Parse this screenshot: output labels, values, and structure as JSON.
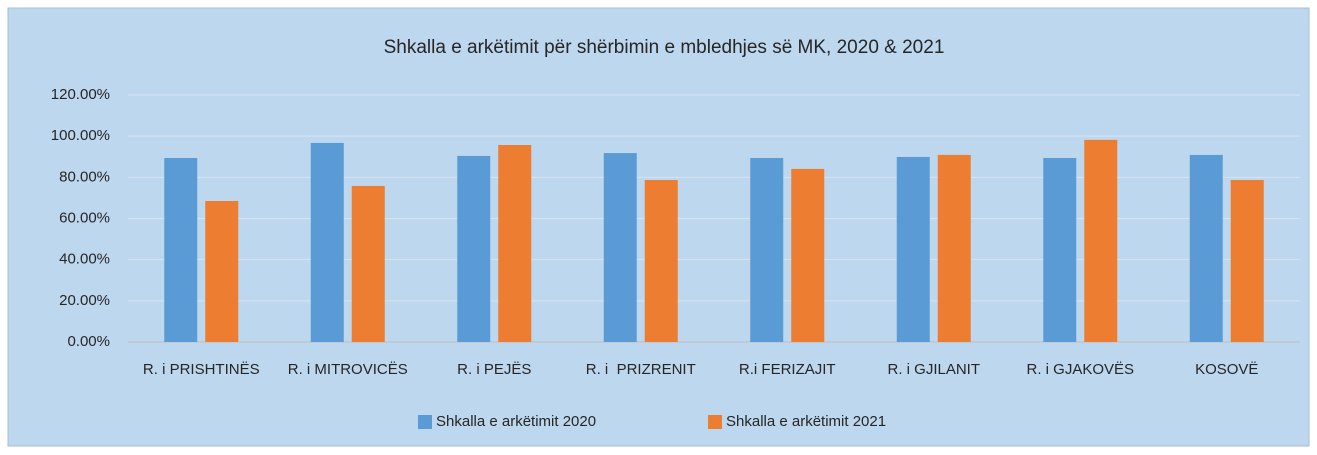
{
  "chart_data": {
    "type": "bar",
    "title": "Shkalla e arkëtimit për shërbimin e mbledhjes së MK, 2020 & 2021",
    "categories": [
      "R. i PRISHTINËS",
      "R. i MITROVICËS",
      "R. i PEJËS",
      "R. i  PRIZRENIT",
      "R.i FERIZAJIT",
      "R. i GJILANIT",
      "R. i GJAKOVËS",
      "KOSOVË"
    ],
    "series": [
      {
        "name": "Shkalla e arkëtimit 2020",
        "color": "#5b9bd5",
        "values": [
          89.4,
          96.7,
          90.4,
          91.8,
          89.4,
          89.9,
          89.4,
          90.9
        ]
      },
      {
        "name": "Shkalla e arkëtimit 2021",
        "color": "#ed7d31",
        "values": [
          68.5,
          75.8,
          95.7,
          78.7,
          84.1,
          90.9,
          98.2,
          78.7
        ]
      }
    ],
    "ylim": [
      0,
      120
    ],
    "yticks": [
      {
        "value": 0,
        "label": "0.00%"
      },
      {
        "value": 20,
        "label": "20.00%"
      },
      {
        "value": 40,
        "label": "40.00%"
      },
      {
        "value": 60,
        "label": "60.00%"
      },
      {
        "value": 80,
        "label": "80.00%"
      },
      {
        "value": 100,
        "label": "100.00%"
      },
      {
        "value": 120,
        "label": "120.00%"
      }
    ],
    "grid": true,
    "legend": "bottom"
  }
}
